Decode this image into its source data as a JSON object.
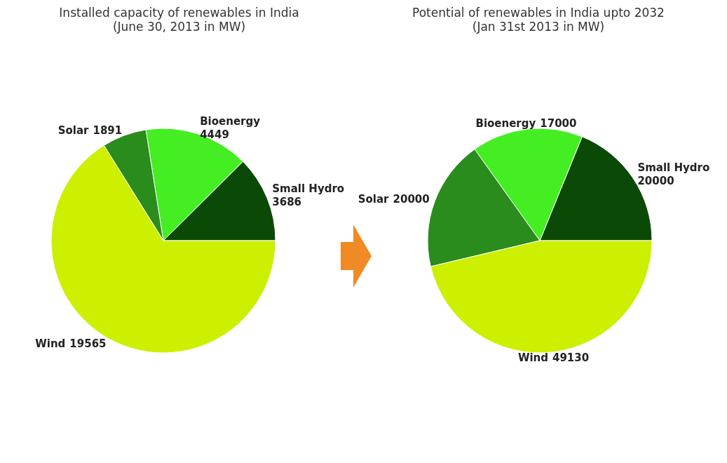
{
  "chart_data": [
    {
      "type": "pie",
      "title": "Installed capacity of renewables in India",
      "subtitle": "(June 30, 2013 in MW)",
      "categories": [
        "Small Hydro",
        "Bioenergy",
        "Solar",
        "Wind"
      ],
      "values": [
        3686,
        4449,
        1891,
        19565
      ],
      "colors": [
        "#0b4a06",
        "#44ee22",
        "#2a8c1c",
        "#ccf000"
      ],
      "data_labels": true,
      "legend": false
    },
    {
      "type": "pie",
      "title": "Potential of renewables in India upto 2032",
      "subtitle": "(Jan 31st 2013 in MW)",
      "categories": [
        "Small Hydro",
        "Bioenergy",
        "Solar",
        "Wind"
      ],
      "values": [
        20000,
        17000,
        20000,
        49130
      ],
      "colors": [
        "#0b4a06",
        "#44ee22",
        "#2a8c1c",
        "#ccf000"
      ],
      "data_labels": true,
      "legend": false
    }
  ]
}
